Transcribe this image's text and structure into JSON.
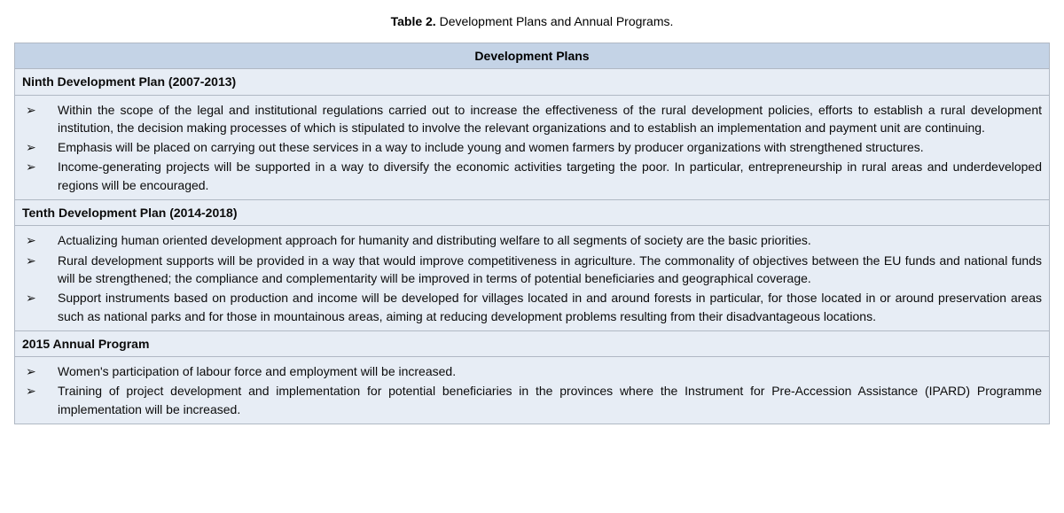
{
  "caption": {
    "label": "Table 2.",
    "title": "Development Plans and Annual Programs."
  },
  "table": {
    "header": "Development Plans",
    "header_bg": "#c4d3e6",
    "cell_bg": "#e7edf5",
    "border_color": "#b0b8c4",
    "text_color": "#0b0b0b",
    "font_size_pt": 10.5,
    "bullet_glyph": "➢",
    "sections": [
      {
        "title": "Ninth Development Plan (2007-2013)",
        "items": [
          "Within the scope of the legal and institutional regulations carried out to increase the effectiveness of the rural development policies, efforts to establish a rural development institution, the decision making processes of which is stipulated to involve the relevant organizations and to establish an implementation and payment unit are continuing.",
          "Emphasis will be placed on carrying out these services in a way to include young and women farmers by producer organizations with strengthened structures.",
          "Income-generating projects will be supported in a way to diversify the economic activities targeting the poor. In particular, entrepreneurship in rural areas and underdeveloped regions will be encouraged."
        ]
      },
      {
        "title": "Tenth Development Plan (2014-2018)",
        "items": [
          "Actualizing human oriented development approach for humanity and distributing welfare to all segments of society are the basic priorities.",
          "Rural development supports will be provided in a way that would improve competitiveness in agriculture. The commonality of objectives between the EU funds and national funds will be strengthened; the compliance and complementarity will be improved in terms of potential beneficiaries and geographical coverage.",
          "Support instruments based on production and income will be developed for villages located in and around forests in particular, for those located in or around preservation areas such as national parks and for those in mountainous areas, aiming at reducing development problems resulting from their disadvantageous locations."
        ]
      },
      {
        "title": "2015 Annual Program",
        "items": [
          "Women's participation of labour force and employment will be increased.",
          "Training of project development and implementation for potential beneficiaries in the provinces where the Instrument for Pre-Accession Assistance (IPARD) Programme implementation will be increased."
        ]
      }
    ]
  }
}
